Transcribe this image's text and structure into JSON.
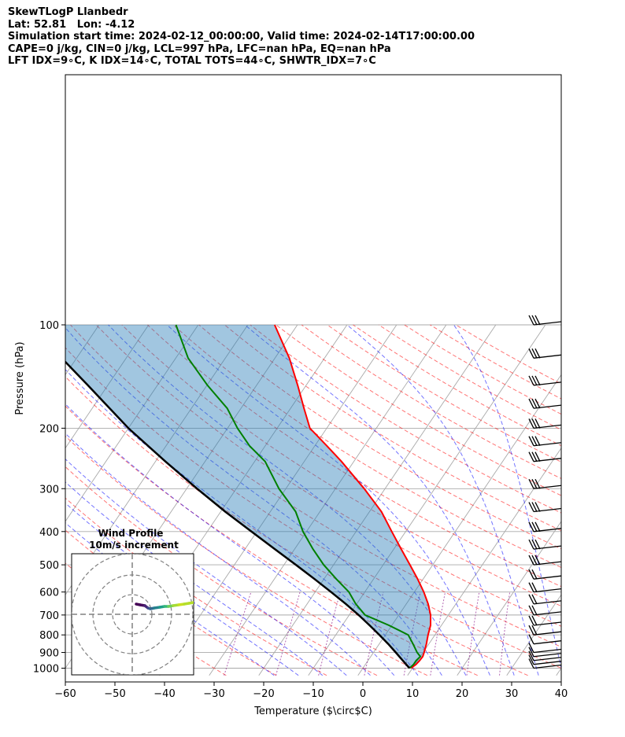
{
  "header": {
    "line1": "SkewTLogP Llanbedr",
    "line2": "Lat: 52.81   Lon: -4.12",
    "line3": "Simulation start time: 2024-02-12_00:00:00, Valid time: 2024-02-14T17:00:00.00",
    "line4": "CAPE=0 j/kg, CIN=0 j/kg, LCL=997 hPa, LFC=nan hPa, EQ=nan hPa",
    "line5": "LFT IDX=9∘C, K IDX=14∘C, TOTAL TOTS=44∘C, SHWTR_IDX=7∘C"
  },
  "colors": {
    "temperature": "#ff0000",
    "dewpoint": "#008000",
    "parcel": "#000000",
    "fill": "#1f77b4",
    "isotherm": "#a9a9a9",
    "dry_adiabat": "#ff0000",
    "moist_adiabat": "#0000ff",
    "mixing_ratio": "#800080"
  },
  "chart_data": {
    "type": "line",
    "xlabel": "Temperature ($\\circ$C)",
    "ylabel": "Pressure (hPa)",
    "x_ticks": [
      "−60",
      "−50",
      "−40",
      "−30",
      "−20",
      "−10",
      "0",
      "10",
      "20",
      "30",
      "40"
    ],
    "x_tick_values": [
      -60,
      -50,
      -40,
      -30,
      -20,
      -10,
      0,
      10,
      20,
      30,
      40
    ],
    "y_ticks": [
      "100",
      "200",
      "300",
      "400",
      "500",
      "600",
      "700",
      "800",
      "900",
      "1000"
    ],
    "y_tick_values": [
      100,
      200,
      300,
      400,
      500,
      600,
      700,
      800,
      900,
      1000
    ],
    "xlim": [
      -60,
      40
    ],
    "ylim": [
      1050,
      100
    ],
    "yscale": "log",
    "skew": true,
    "grid": true,
    "series": [
      {
        "role": "temperature",
        "points": [
          [
            1000,
            9.7
          ],
          [
            975,
            10.2
          ],
          [
            950,
            10.4
          ],
          [
            925,
            10.5
          ],
          [
            900,
            10.2
          ],
          [
            850,
            9.5
          ],
          [
            800,
            8.6
          ],
          [
            750,
            7.8
          ],
          [
            700,
            6.4
          ],
          [
            650,
            4.4
          ],
          [
            600,
            1.9
          ],
          [
            550,
            -1.1
          ],
          [
            500,
            -4.6
          ],
          [
            450,
            -8.5
          ],
          [
            400,
            -12.8
          ],
          [
            350,
            -17.6
          ],
          [
            300,
            -24.2
          ],
          [
            250,
            -32.5
          ],
          [
            225,
            -37.6
          ],
          [
            200,
            -43.4
          ],
          [
            175,
            -47.3
          ],
          [
            150,
            -51.7
          ],
          [
            125,
            -57.1
          ],
          [
            100,
            -64.6
          ]
        ]
      },
      {
        "role": "dewpoint",
        "points": [
          [
            1000,
            9.4
          ],
          [
            975,
            9.7
          ],
          [
            950,
            9.7
          ],
          [
            925,
            10.0
          ],
          [
            900,
            8.8
          ],
          [
            850,
            6.8
          ],
          [
            800,
            4.6
          ],
          [
            750,
            -0.6
          ],
          [
            700,
            -6.8
          ],
          [
            650,
            -10.2
          ],
          [
            600,
            -13.2
          ],
          [
            550,
            -17.5
          ],
          [
            500,
            -22.0
          ],
          [
            450,
            -26.3
          ],
          [
            400,
            -30.7
          ],
          [
            350,
            -34.9
          ],
          [
            300,
            -41.4
          ],
          [
            250,
            -47.9
          ],
          [
            225,
            -53.2
          ],
          [
            200,
            -58.0
          ],
          [
            175,
            -62.8
          ],
          [
            150,
            -69.9
          ],
          [
            125,
            -77.5
          ],
          [
            100,
            -84.5
          ]
        ]
      },
      {
        "role": "parcel",
        "points": [
          [
            1000,
            9.4
          ],
          [
            950,
            7.0
          ],
          [
            900,
            4.5
          ],
          [
            850,
            1.8
          ],
          [
            800,
            -1.2
          ],
          [
            750,
            -4.5
          ],
          [
            700,
            -8.1
          ],
          [
            650,
            -12.2
          ],
          [
            600,
            -16.8
          ],
          [
            550,
            -21.9
          ],
          [
            500,
            -27.6
          ],
          [
            450,
            -34.0
          ],
          [
            400,
            -41.1
          ],
          [
            350,
            -49.1
          ],
          [
            300,
            -57.9
          ],
          [
            250,
            -68.0
          ],
          [
            200,
            -80.0
          ],
          [
            150,
            -94.0
          ],
          [
            125,
            -103.0
          ],
          [
            100,
            -113.0
          ]
        ]
      }
    ],
    "wind_barbs_pressure_hpa": [
      1000,
      975,
      950,
      925,
      900,
      850,
      800,
      750,
      700,
      650,
      600,
      550,
      500,
      450,
      400,
      350,
      300,
      250,
      225,
      200,
      175,
      150,
      125,
      100
    ],
    "inset": {
      "title_line1": "Wind Profile",
      "title_line2": "10m/s increment",
      "rings": 3
    }
  }
}
